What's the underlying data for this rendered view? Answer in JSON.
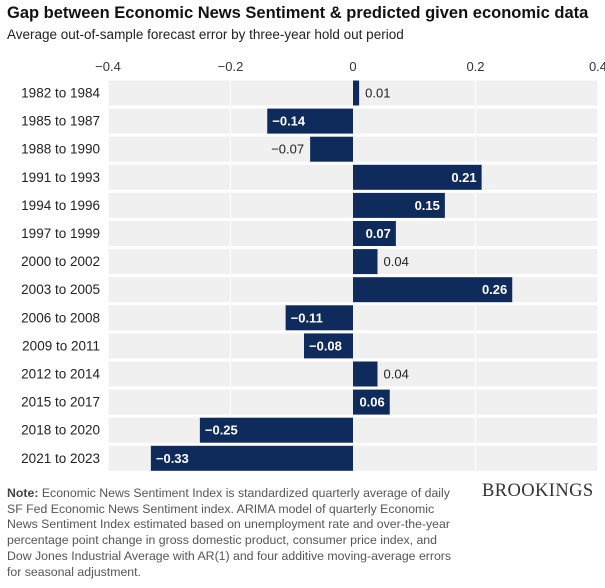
{
  "header": {
    "title": "Gap between Economic News Sentiment & predicted given economic data",
    "subtitle": "Average out-of-sample forecast error by three-year hold out period"
  },
  "chart_data": {
    "type": "bar",
    "orientation": "horizontal",
    "title": "Gap between Economic News Sentiment & predicted given economic data",
    "subtitle": "Average out-of-sample forecast error by three-year hold out period",
    "xlabel": "",
    "ylabel": "",
    "xlim": [
      -0.4,
      0.4
    ],
    "ticks": [
      -0.4,
      -0.2,
      0,
      0.2,
      0.4
    ],
    "tick_labels": [
      "−0.4",
      "−0.2",
      "0",
      "0.2",
      "0.4"
    ],
    "grid": true,
    "bar_color": "#0f2b5b",
    "categories": [
      "1982 to 1984",
      "1985 to 1987",
      "1988 to 1990",
      "1991 to 1993",
      "1994 to 1996",
      "1997 to 1999",
      "2000 to 2002",
      "2003 to 2005",
      "2006 to 2008",
      "2009 to 2011",
      "2012 to 2014",
      "2015 to 2017",
      "2018 to 2020",
      "2021 to 2023"
    ],
    "values": [
      0.01,
      -0.14,
      -0.07,
      0.21,
      0.15,
      0.07,
      0.04,
      0.26,
      -0.11,
      -0.08,
      0.04,
      0.06,
      -0.25,
      -0.33
    ],
    "value_labels": [
      "0.01",
      "−0.14",
      "−0.07",
      "0.21",
      "0.15",
      "0.07",
      "0.04",
      "0.26",
      "−0.11",
      "−0.08",
      "0.04",
      "0.06",
      "−0.25",
      "−0.33"
    ]
  },
  "footer": {
    "note_label": "Note:",
    "note_text": " Economic News Sentiment Index is standardized quarterly average of daily SF Fed Economic News Sentiment index. ARIMA model of quarterly Economic News Sentiment Index estimated based on unemployment rate and over-the-year percentage point change in gross domestic product, consumer price index, and Dow Jones Industrial Average with AR(1) and four additive moving-average errors for seasonal adjustment.",
    "brand": "BROOKINGS"
  }
}
